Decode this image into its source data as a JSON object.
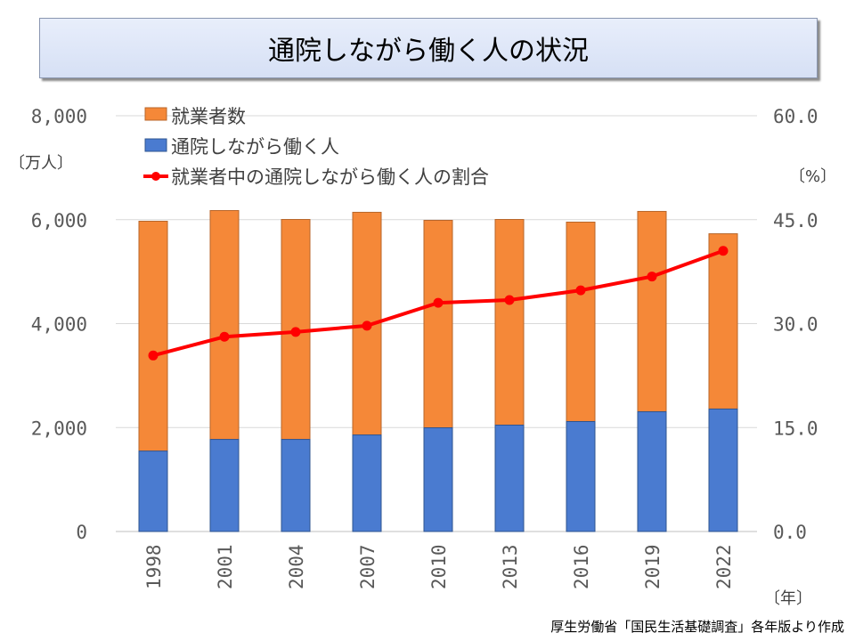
{
  "title": "通院しながら働く人の状況",
  "source": "厚生労働省「国民生活基礎調査」各年版より作成",
  "colors": {
    "workers": "#f58838",
    "patients": "#4a7bd0",
    "ratio": "#ff0000"
  },
  "chart_data": {
    "type": "bar",
    "title": "通院しながら働く人の状況",
    "categories": [
      "1998",
      "2001",
      "2004",
      "2007",
      "2010",
      "2013",
      "2016",
      "2019",
      "2022"
    ],
    "series": [
      {
        "name": "就業者数",
        "type": "bar",
        "axis": "left",
        "values": [
          5970,
          6176,
          6004,
          6142,
          5987,
          6004,
          5953,
          6159,
          5729
        ]
      },
      {
        "name": "通院しながら働く人",
        "type": "bar",
        "axis": "left",
        "values": [
          1548,
          1772,
          1772,
          1858,
          1996,
          2047,
          2116,
          2305,
          2357
        ]
      },
      {
        "name": "就業者中の通院しながら働く人の割合",
        "type": "line",
        "axis": "right",
        "values": [
          25.4,
          28.1,
          28.8,
          29.7,
          33.0,
          33.4,
          34.8,
          36.8,
          40.5
        ]
      }
    ],
    "ylabel": "〔万人〕",
    "y2label": "〔%〕",
    "xlabel": "〔年〕",
    "ylim": [
      0,
      8000
    ],
    "y2lim": [
      0,
      60
    ],
    "yticks": [
      "0",
      "2,000",
      "4,000",
      "6,000",
      "8,000"
    ],
    "y2ticks": [
      "0.0",
      "15.0",
      "30.0",
      "45.0",
      "60.0"
    ],
    "grid": true,
    "legend_position": "top-left"
  }
}
